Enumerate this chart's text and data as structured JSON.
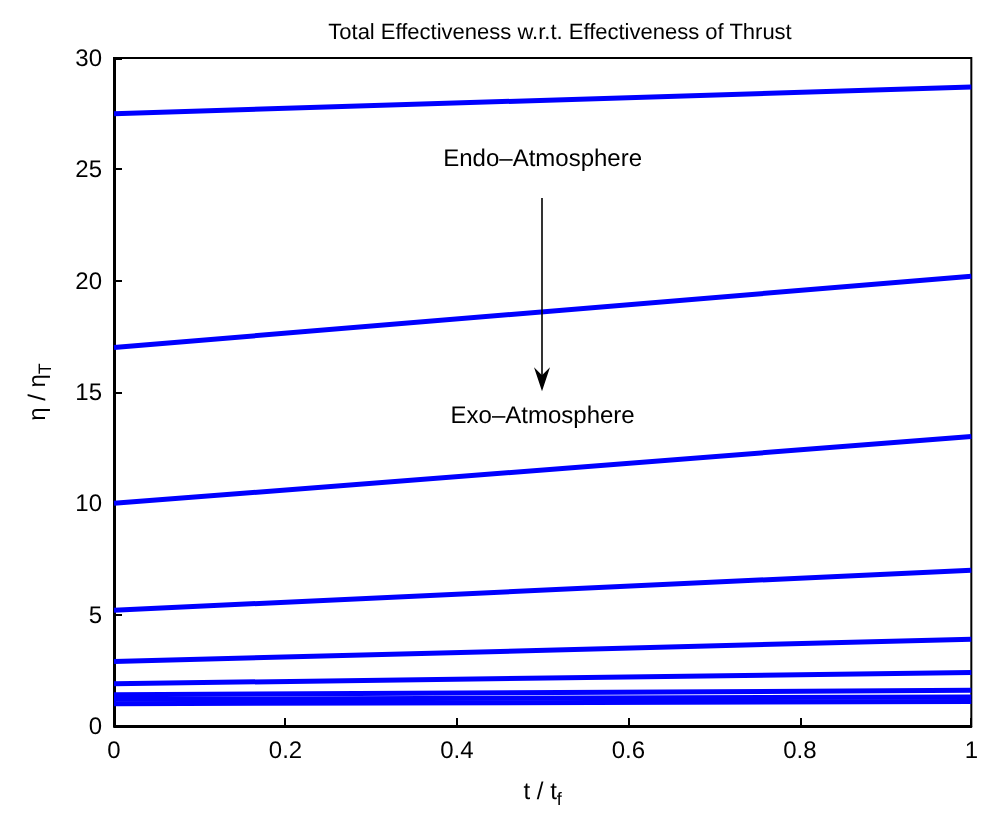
{
  "chart_data": {
    "type": "line",
    "title": "Total Effectiveness w.r.t. Effectiveness of Thrust",
    "xlabel": "t / t$_{f}$",
    "ylabel": "η / η$_{T}$",
    "x": [
      0,
      1
    ],
    "xlim": [
      0,
      1
    ],
    "xticks": [
      0,
      0.2,
      0.4,
      0.6,
      0.8,
      1
    ],
    "ylim": [
      0,
      30
    ],
    "yticks": [
      0,
      5,
      10,
      15,
      20,
      25,
      30
    ],
    "series": [
      {
        "color": "#0000ff",
        "values": [
          27.5,
          28.7
        ]
      },
      {
        "color": "#0000ff",
        "values": [
          17.0,
          20.2
        ]
      },
      {
        "color": "#0000ff",
        "values": [
          10.0,
          13.0
        ]
      },
      {
        "color": "#0000ff",
        "values": [
          5.2,
          7.0
        ]
      },
      {
        "color": "#0000ff",
        "values": [
          2.9,
          3.9
        ]
      },
      {
        "color": "#0000ff",
        "values": [
          1.9,
          2.4
        ]
      },
      {
        "color": "#0000ff",
        "values": [
          1.4,
          1.6
        ]
      },
      {
        "color": "#0000ff",
        "values": [
          1.2,
          1.3
        ]
      },
      {
        "color": "#0000ff",
        "values": [
          1.0,
          1.1
        ]
      }
    ],
    "annotations": [
      "Endo–Atmosphere",
      "Exo–Atmosphere"
    ],
    "grid": false,
    "marker": "none",
    "line_style": "solid"
  }
}
